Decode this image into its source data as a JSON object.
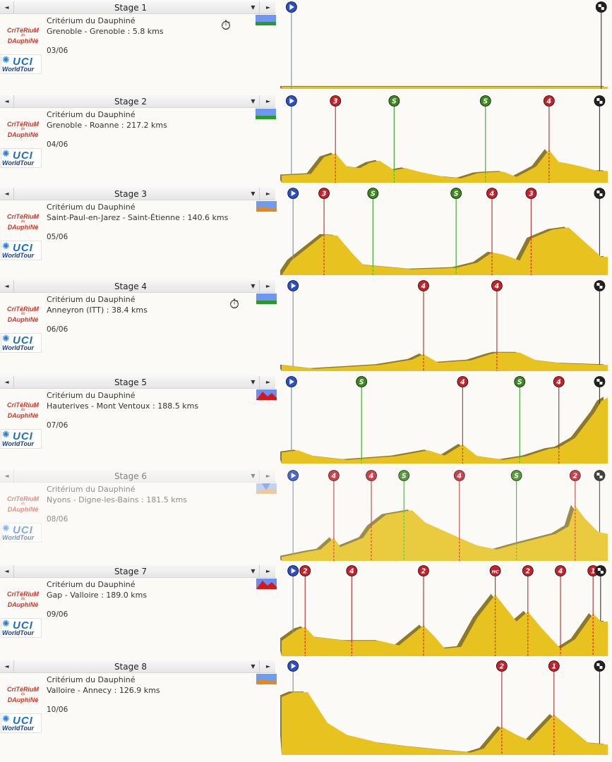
{
  "race": "Critérium du Dauphiné",
  "logos": {
    "race_logo": "CRITÉRIUM du DAUPHINÉ",
    "race_logo_line1": "CriTéRiuM",
    "race_logo_du": "du",
    "race_logo_line2": "DAuphiNé",
    "uci_logo": "UCI WorldTour",
    "uci_letters": "UCI",
    "uci_sub": "WorldTour"
  },
  "controls": {
    "prev_glyph": "◄",
    "dropdown_glyph": "▼",
    "next_glyph": "►",
    "timer_glyph": "⏱"
  },
  "colors": {
    "profile_fill": "#e8c21e",
    "profile_shadow": "#8a7a30",
    "climb_marker": "#c8202a",
    "sprint_marker": "#3a8a1a",
    "start_marker": "#2a4fc8",
    "finish_marker": "#222222",
    "race_red": "#c8382a",
    "uci_blue": "#1e6fc0"
  },
  "stages": [
    {
      "label": "Stage 1",
      "race": "Critérium du Dauphiné",
      "route": "Grenoble - Grenoble : 5.8 kms",
      "date": "03/06",
      "type_icon": "flat-icon",
      "itt": true,
      "markers": [
        {
          "kind": "start",
          "x": 0.03
        },
        {
          "kind": "finish",
          "x": 0.98
        }
      ]
    },
    {
      "label": "Stage 2",
      "race": "Critérium du Dauphiné",
      "route": "Grenoble - Roanne : 217.2 kms",
      "date": "04/06",
      "type_icon": "flat-icon",
      "itt": false,
      "markers": [
        {
          "kind": "start",
          "x": 0.03
        },
        {
          "kind": "climb",
          "cat": "3",
          "x": 0.165
        },
        {
          "kind": "sprint",
          "cat": "S",
          "x": 0.345
        },
        {
          "kind": "sprint",
          "cat": "S",
          "x": 0.625
        },
        {
          "kind": "climb",
          "cat": "4",
          "x": 0.82
        },
        {
          "kind": "finish",
          "x": 0.975
        }
      ]
    },
    {
      "label": "Stage 3",
      "race": "Critérium du Dauphiné",
      "route": "Saint-Paul-en-Jarez - Saint-Étienne : 140.6 kms",
      "date": "05/06",
      "type_icon": "hilly-icon",
      "itt": false,
      "markers": [
        {
          "kind": "start",
          "x": 0.035
        },
        {
          "kind": "climb",
          "cat": "3",
          "x": 0.13
        },
        {
          "kind": "sprint",
          "cat": "S",
          "x": 0.28
        },
        {
          "kind": "sprint",
          "cat": "S",
          "x": 0.535
        },
        {
          "kind": "climb",
          "cat": "4",
          "x": 0.645
        },
        {
          "kind": "climb",
          "cat": "3",
          "x": 0.765
        },
        {
          "kind": "finish",
          "x": 0.975
        }
      ]
    },
    {
      "label": "Stage 4",
      "race": "Critérium du Dauphiné",
      "route": "Anneyron (ITT) : 38.4 kms",
      "date": "06/06",
      "type_icon": "flat-icon",
      "itt": true,
      "markers": [
        {
          "kind": "start",
          "x": 0.035
        },
        {
          "kind": "climb",
          "cat": "4",
          "x": 0.435
        },
        {
          "kind": "climb",
          "cat": "4",
          "x": 0.66
        },
        {
          "kind": "finish",
          "x": 0.975
        }
      ]
    },
    {
      "label": "Stage 5",
      "race": "Critérium du Dauphiné",
      "route": "Hauterives - Mont Ventoux : 188.5 kms",
      "date": "07/06",
      "type_icon": "mountain-icon",
      "itt": false,
      "markers": [
        {
          "kind": "start",
          "x": 0.03
        },
        {
          "kind": "sprint",
          "cat": "S",
          "x": 0.245
        },
        {
          "kind": "climb",
          "cat": "4",
          "x": 0.555
        },
        {
          "kind": "sprint",
          "cat": "S",
          "x": 0.73
        },
        {
          "kind": "climb",
          "cat": "4",
          "x": 0.85
        },
        {
          "kind": "finish",
          "x": 0.975
        }
      ]
    },
    {
      "label": "Stage 6",
      "race": "Critérium du Dauphiné",
      "route": "Nyons - Digne-les-Bains : 181.5 kms",
      "date": "08/06",
      "type_icon": "medium-mountain-icon",
      "itt": false,
      "markers": [
        {
          "kind": "start",
          "x": 0.035
        },
        {
          "kind": "climb",
          "cat": "4",
          "x": 0.16
        },
        {
          "kind": "climb",
          "cat": "4",
          "x": 0.275
        },
        {
          "kind": "sprint",
          "cat": "S",
          "x": 0.375
        },
        {
          "kind": "climb",
          "cat": "4",
          "x": 0.545
        },
        {
          "kind": "sprint",
          "cat": "S",
          "x": 0.72
        },
        {
          "kind": "climb",
          "cat": "2",
          "x": 0.9
        },
        {
          "kind": "finish",
          "x": 0.975
        }
      ]
    },
    {
      "label": "Stage 7",
      "race": "Critérium du Dauphiné",
      "route": "Gap - Valloire : 189.0 kms",
      "date": "09/06",
      "type_icon": "mountain-icon",
      "itt": false,
      "markers": [
        {
          "kind": "start",
          "x": 0.035
        },
        {
          "kind": "climb",
          "cat": "2",
          "x": 0.072
        },
        {
          "kind": "climb",
          "cat": "4",
          "x": 0.215
        },
        {
          "kind": "climb",
          "cat": "2",
          "x": 0.435
        },
        {
          "kind": "climb",
          "cat": "HC",
          "x": 0.655
        },
        {
          "kind": "climb",
          "cat": "2",
          "x": 0.755
        },
        {
          "kind": "climb",
          "cat": "4",
          "x": 0.855
        },
        {
          "kind": "climb",
          "cat": "1",
          "x": 0.955
        },
        {
          "kind": "finish",
          "x": 0.978
        }
      ]
    },
    {
      "label": "Stage 8",
      "race": "Critérium du Dauphiné",
      "route": "Valloire - Annecy : 126.9 kms",
      "date": "10/06",
      "type_icon": "hilly-icon",
      "itt": false,
      "markers": [
        {
          "kind": "start",
          "x": 0.035
        },
        {
          "kind": "climb",
          "cat": "2",
          "x": 0.675
        },
        {
          "kind": "climb",
          "cat": "1",
          "x": 0.835
        },
        {
          "kind": "finish",
          "x": 0.975
        }
      ]
    }
  ]
}
